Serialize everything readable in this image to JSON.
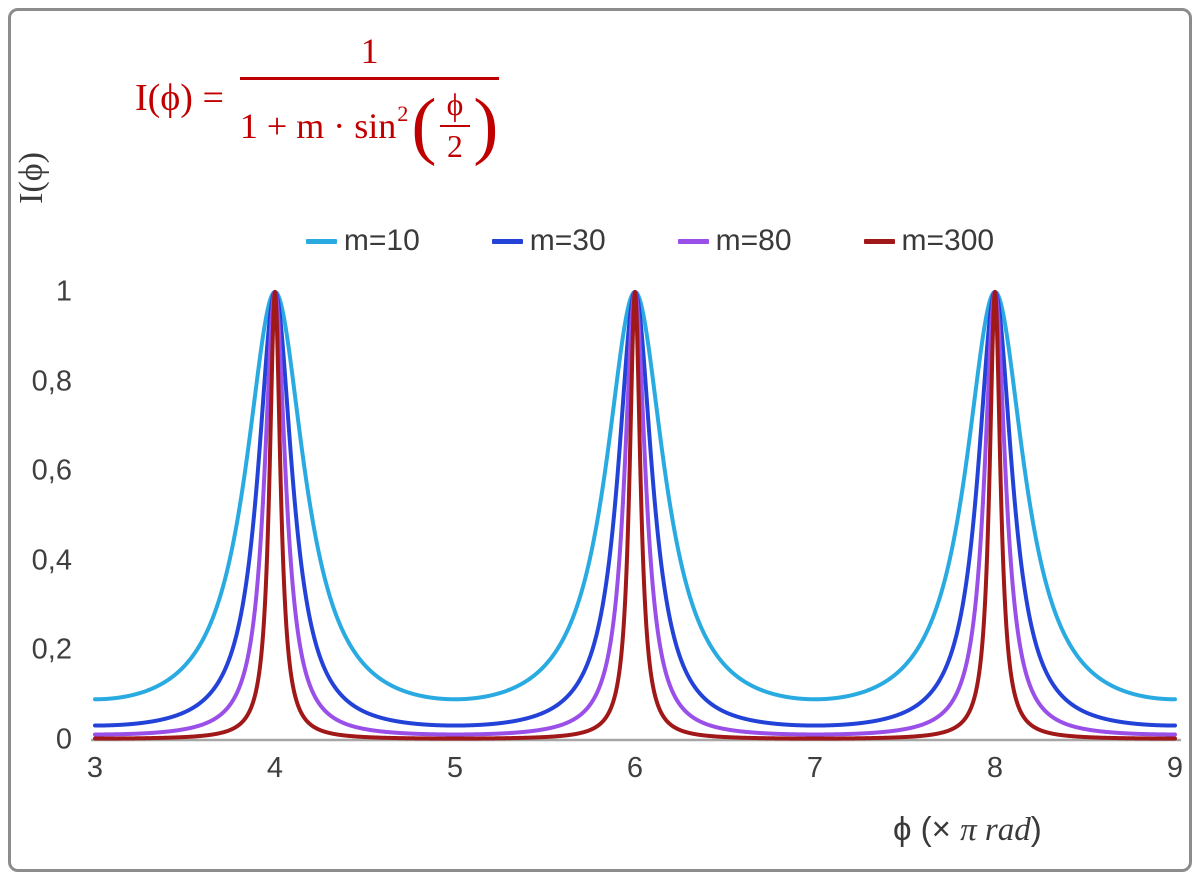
{
  "formula": {
    "lhs": "I(ϕ) =",
    "numerator": "1",
    "denominator_prefix": "1 + m · sin",
    "denominator_sup": "2",
    "paren_open": "(",
    "paren_close": ")",
    "inner_numerator": "ϕ",
    "inner_denominator": "2",
    "color": "#c00000"
  },
  "legend": [
    {
      "label": "m=10",
      "color": "#29abe2"
    },
    {
      "label": "m=30",
      "color": "#2343d8"
    },
    {
      "label": "m=80",
      "color": "#9a4fe8"
    },
    {
      "label": "m=300",
      "color": "#a01818"
    }
  ],
  "axes": {
    "y_title": "I(ϕ)",
    "x_title_prefix": "ϕ  (× ",
    "x_title_italic": "π rad",
    "x_title_close": ")",
    "x_tick_labels": [
      "3",
      "4",
      "5",
      "6",
      "7",
      "8",
      "9"
    ],
    "y_tick_labels": [
      "0",
      "0,2",
      "0,4",
      "0,6",
      "0,8",
      "1"
    ]
  },
  "chart_data": {
    "type": "line",
    "title": "",
    "function": "I(phi) = 1 / (1 + m * sin^2(phi/2))",
    "x_unit": "multiples of pi rad",
    "xlabel": "ϕ (× π rad)",
    "ylabel": "I(ϕ)",
    "x_range": [
      3,
      9
    ],
    "y_range": [
      0,
      1
    ],
    "y_draw_max": 1.62,
    "x_ticks": [
      3,
      4,
      5,
      6,
      7,
      8,
      9
    ],
    "y_ticks": [
      0,
      0.2,
      0.4,
      0.6,
      0.8,
      1
    ],
    "grid": false,
    "legend_position": "top-center",
    "axis_color": "#a6a6a6",
    "peaks_at_x": [
      4,
      6,
      8
    ],
    "peak_value": 1,
    "series": [
      {
        "name": "m=10",
        "m": 10,
        "color": "#29abe2",
        "value_at_x3": 0.0909
      },
      {
        "name": "m=30",
        "m": 30,
        "color": "#2343d8",
        "value_at_x3": 0.0323
      },
      {
        "name": "m=80",
        "m": 80,
        "color": "#9a4fe8",
        "value_at_x3": 0.0123
      },
      {
        "name": "m=300",
        "m": 300,
        "color": "#a01818",
        "value_at_x3": 0.0033
      }
    ]
  }
}
